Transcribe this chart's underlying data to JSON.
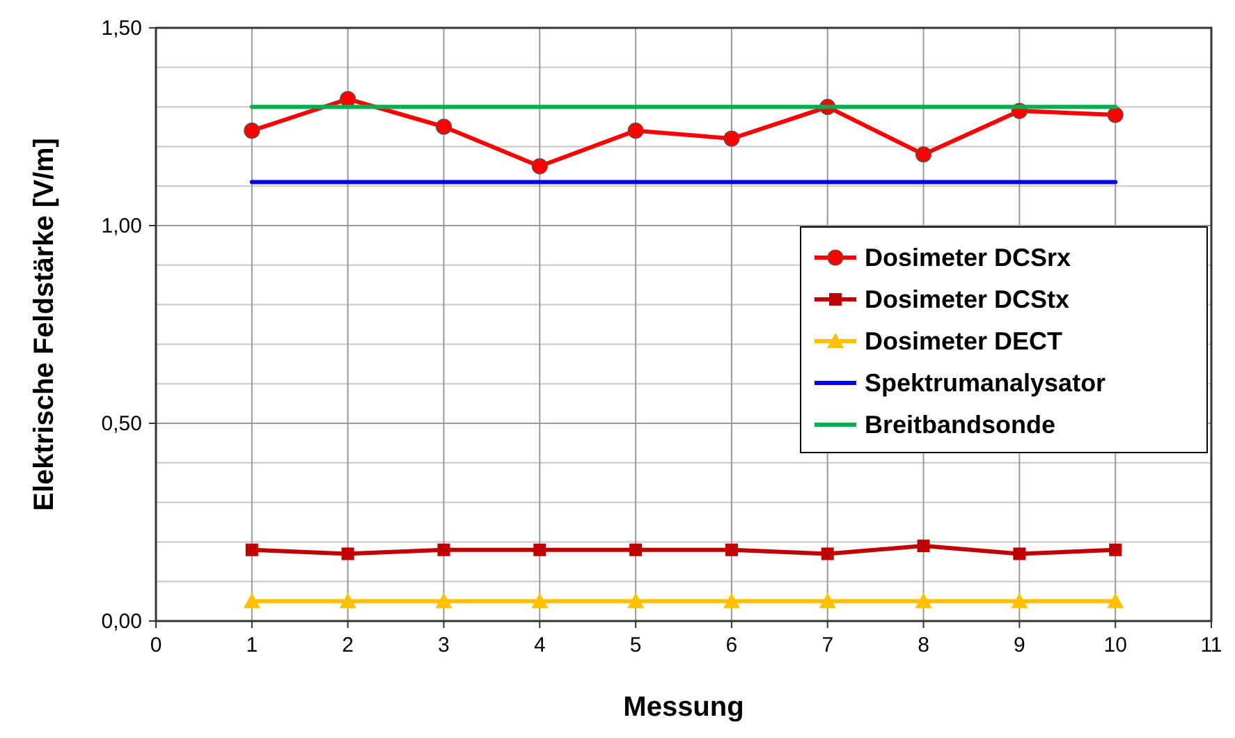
{
  "chart_data": {
    "type": "line",
    "xlabel": "Messung",
    "ylabel": "Elektrische Feldstärke [V/m]",
    "x": [
      1,
      2,
      3,
      4,
      5,
      6,
      7,
      8,
      9,
      10
    ],
    "xlim": [
      0,
      11
    ],
    "xticks": [
      0,
      1,
      2,
      3,
      4,
      5,
      6,
      7,
      8,
      9,
      10,
      11
    ],
    "ylim": [
      0,
      1.5
    ],
    "yticks": [
      {
        "value": 0,
        "label": "0,00"
      },
      {
        "value": 0.1,
        "label": null
      },
      {
        "value": 0.2,
        "label": null
      },
      {
        "value": 0.3,
        "label": null
      },
      {
        "value": 0.4,
        "label": null
      },
      {
        "value": 0.5,
        "label": "0,50"
      },
      {
        "value": 0.6,
        "label": null
      },
      {
        "value": 0.7,
        "label": null
      },
      {
        "value": 0.8,
        "label": null
      },
      {
        "value": 0.9,
        "label": null
      },
      {
        "value": 1.0,
        "label": "1,00"
      },
      {
        "value": 1.1,
        "label": null
      },
      {
        "value": 1.2,
        "label": null
      },
      {
        "value": 1.3,
        "label": null
      },
      {
        "value": 1.4,
        "label": null
      },
      {
        "value": 1.5,
        "label": "1,50"
      }
    ],
    "grid": true,
    "legend": "right",
    "series": [
      {
        "name": "Dosimeter DCSrx",
        "color": "#ff0000",
        "marker": "circle",
        "values": [
          1.24,
          1.32,
          1.25,
          1.15,
          1.24,
          1.22,
          1.3,
          1.18,
          1.29,
          1.28
        ]
      },
      {
        "name": "Dosimeter DCStx",
        "color": "#c00000",
        "marker": "square",
        "values": [
          0.18,
          0.17,
          0.18,
          0.18,
          0.18,
          0.18,
          0.17,
          0.19,
          0.17,
          0.18
        ]
      },
      {
        "name": "Dosimeter DECT",
        "color": "#ffc000",
        "marker": "triangle",
        "values": [
          0.05,
          0.05,
          0.05,
          0.05,
          0.05,
          0.05,
          0.05,
          0.05,
          0.05,
          0.05
        ]
      },
      {
        "name": "Spektrumanalysator",
        "color": "#0000ff",
        "marker": "none",
        "values": [
          1.11,
          1.11,
          1.11,
          1.11,
          1.11,
          1.11,
          1.11,
          1.11,
          1.11,
          1.11
        ]
      },
      {
        "name": "Breitbandsonde",
        "color": "#00b050",
        "marker": "none",
        "values": [
          1.3,
          1.3,
          1.3,
          1.3,
          1.3,
          1.3,
          1.3,
          1.3,
          1.3,
          1.3
        ]
      }
    ]
  }
}
